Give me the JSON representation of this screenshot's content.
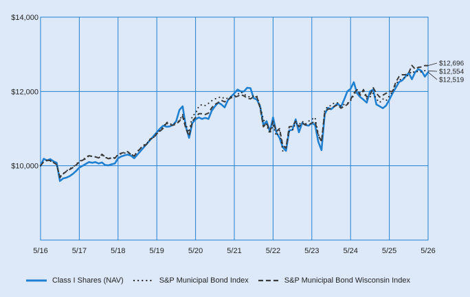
{
  "chart_data": {
    "type": "line",
    "title": "",
    "xlabel": "",
    "ylabel": "",
    "ylim": [
      8000,
      14000
    ],
    "xlim": [
      "2016-05",
      "2026-05"
    ],
    "y_ticks": [
      {
        "value": 10000,
        "label": "$10,000"
      },
      {
        "value": 12000,
        "label": "$12,000"
      },
      {
        "value": 14000,
        "label": "$14,000"
      }
    ],
    "x_ticks": [
      "5/16",
      "5/17",
      "5/18",
      "5/19",
      "5/20",
      "5/21",
      "5/22",
      "5/23",
      "5/24",
      "5/25",
      "5/26"
    ],
    "grid": true,
    "legend_position": "bottom",
    "colors": {
      "fund": "#1f7fd1",
      "muni": "#222222",
      "wisconsin": "#3a3a3a",
      "grid": "#1f7fd1",
      "background": "#dde9f8"
    },
    "series": [
      {
        "name": "Class I Shares (NAV)",
        "style": "solid",
        "end_label": "$12,519",
        "x": [
          "2016-05",
          "2016-06",
          "2016-07",
          "2016-08",
          "2016-09",
          "2016-10",
          "2016-11",
          "2016-12",
          "2017-01",
          "2017-02",
          "2017-03",
          "2017-04",
          "2017-05",
          "2017-06",
          "2017-07",
          "2017-08",
          "2017-09",
          "2017-10",
          "2017-11",
          "2017-12",
          "2018-01",
          "2018-02",
          "2018-03",
          "2018-04",
          "2018-05",
          "2018-06",
          "2018-07",
          "2018-08",
          "2018-09",
          "2018-10",
          "2018-11",
          "2018-12",
          "2019-01",
          "2019-02",
          "2019-03",
          "2019-04",
          "2019-05",
          "2019-06",
          "2019-07",
          "2019-08",
          "2019-09",
          "2019-10",
          "2019-11",
          "2019-12",
          "2020-01",
          "2020-02",
          "2020-03",
          "2020-04",
          "2020-05",
          "2020-06",
          "2020-07",
          "2020-08",
          "2020-09",
          "2020-10",
          "2020-11",
          "2020-12",
          "2021-01",
          "2021-02",
          "2021-03",
          "2021-04",
          "2021-05",
          "2021-06",
          "2021-07",
          "2021-08",
          "2021-09",
          "2021-10",
          "2021-11",
          "2021-12",
          "2022-01",
          "2022-02",
          "2022-03",
          "2022-04",
          "2022-05",
          "2022-06",
          "2022-07",
          "2022-08",
          "2022-09",
          "2022-10",
          "2022-11",
          "2022-12",
          "2023-01",
          "2023-02",
          "2023-03",
          "2023-04",
          "2023-05",
          "2023-06",
          "2023-07",
          "2023-08",
          "2023-09",
          "2023-10",
          "2023-11",
          "2023-12",
          "2024-01",
          "2024-02",
          "2024-03",
          "2024-04",
          "2024-05",
          "2024-06",
          "2024-07",
          "2024-08",
          "2024-09",
          "2024-10",
          "2024-11",
          "2024-12",
          "2025-01",
          "2025-02",
          "2025-03",
          "2025-04",
          "2025-05",
          "2025-06",
          "2025-07",
          "2025-08",
          "2025-09",
          "2025-10",
          "2025-11",
          "2025-12",
          "2026-01",
          "2026-02",
          "2026-03",
          "2026-04",
          "2026-05"
        ],
        "values": [
          10000,
          10190,
          10140,
          10180,
          10120,
          10080,
          9590,
          9660,
          9680,
          9720,
          9780,
          9860,
          9950,
          10000,
          10050,
          10100,
          10080,
          10100,
          10060,
          10090,
          10020,
          10010,
          10040,
          10060,
          10200,
          10250,
          10280,
          10300,
          10270,
          10200,
          10300,
          10400,
          10500,
          10600,
          10700,
          10800,
          10900,
          11000,
          11080,
          11050,
          11060,
          11100,
          11200,
          11500,
          11600,
          11050,
          10750,
          11150,
          11250,
          11300,
          11260,
          11290,
          11260,
          11480,
          11600,
          11700,
          11650,
          11570,
          11760,
          11860,
          11950,
          12050,
          12000,
          12000,
          12100,
          12090,
          11820,
          11780,
          11600,
          11100,
          11200,
          10920,
          11300,
          10900,
          10750,
          10500,
          10400,
          10950,
          10970,
          11250,
          10900,
          11150,
          11100,
          11080,
          11150,
          11100,
          10650,
          10420,
          11390,
          11560,
          11520,
          11600,
          11680,
          11580,
          11780,
          12000,
          12070,
          12250,
          11950,
          11850,
          11780,
          11700,
          12000,
          12050,
          11650,
          11600,
          11550,
          11620,
          11780,
          11950,
          12100,
          12250,
          12300,
          12400,
          12500,
          12330,
          12519,
          12600,
          12550,
          12400,
          12519
        ]
      },
      {
        "name": "S&P Municipal Bond Index",
        "style": "dotted",
        "end_label": "$12,554",
        "x": [
          "2016-05",
          "2016-06",
          "2016-07",
          "2016-08",
          "2016-09",
          "2016-10",
          "2016-11",
          "2016-12",
          "2017-01",
          "2017-02",
          "2017-03",
          "2017-04",
          "2017-05",
          "2017-06",
          "2017-07",
          "2017-08",
          "2017-09",
          "2017-10",
          "2017-11",
          "2017-12",
          "2018-01",
          "2018-02",
          "2018-03",
          "2018-04",
          "2018-05",
          "2018-06",
          "2018-07",
          "2018-08",
          "2018-09",
          "2018-10",
          "2018-11",
          "2018-12",
          "2019-01",
          "2019-02",
          "2019-03",
          "2019-04",
          "2019-05",
          "2019-06",
          "2019-07",
          "2019-08",
          "2019-09",
          "2019-10",
          "2019-11",
          "2019-12",
          "2020-01",
          "2020-02",
          "2020-03",
          "2020-04",
          "2020-05",
          "2020-06",
          "2020-07",
          "2020-08",
          "2020-09",
          "2020-10",
          "2020-11",
          "2020-12",
          "2021-01",
          "2021-02",
          "2021-03",
          "2021-04",
          "2021-05",
          "2021-06",
          "2021-07",
          "2021-08",
          "2021-09",
          "2021-10",
          "2021-11",
          "2021-12",
          "2022-01",
          "2022-02",
          "2022-03",
          "2022-04",
          "2022-05",
          "2022-06",
          "2022-07",
          "2022-08",
          "2022-09",
          "2022-10",
          "2022-11",
          "2022-12",
          "2023-01",
          "2023-02",
          "2023-03",
          "2023-04",
          "2023-05",
          "2023-06",
          "2023-07",
          "2023-08",
          "2023-09",
          "2023-10",
          "2023-11",
          "2023-12",
          "2024-01",
          "2024-02",
          "2024-03",
          "2024-04",
          "2024-05",
          "2024-06",
          "2024-07",
          "2024-08",
          "2024-09",
          "2024-10",
          "2024-11",
          "2024-12",
          "2025-01",
          "2025-02",
          "2025-03",
          "2025-04",
          "2025-05",
          "2025-06",
          "2025-07",
          "2025-08",
          "2025-09",
          "2025-10",
          "2025-11",
          "2025-12",
          "2026-01",
          "2026-02",
          "2026-03",
          "2026-04",
          "2026-05"
        ],
        "values": [
          10000,
          10120,
          10140,
          10130,
          10090,
          10020,
          9700,
          9790,
          9860,
          9920,
          9960,
          10040,
          10120,
          10160,
          10220,
          10280,
          10250,
          10240,
          10210,
          10290,
          10230,
          10190,
          10230,
          10210,
          10300,
          10320,
          10340,
          10360,
          10310,
          10270,
          10390,
          10480,
          10560,
          10610,
          10730,
          10760,
          10880,
          10950,
          11040,
          11180,
          11120,
          11130,
          11150,
          11220,
          11380,
          11100,
          10900,
          11350,
          11400,
          11600,
          11650,
          11620,
          11680,
          11750,
          11800,
          11830,
          11860,
          11800,
          11820,
          11860,
          11880,
          11920,
          11990,
          11930,
          11870,
          11850,
          11880,
          11870,
          11600,
          11250,
          11100,
          10860,
          11100,
          10800,
          10950,
          10400,
          10500,
          10920,
          10950,
          11150,
          11100,
          11200,
          11120,
          11200,
          11250,
          11300,
          10850,
          10650,
          11500,
          11600,
          11620,
          11700,
          11690,
          11600,
          11650,
          11680,
          11750,
          11900,
          12050,
          11950,
          12000,
          11800,
          11850,
          11950,
          11800,
          11700,
          11800,
          11750,
          11880,
          12000,
          12200,
          12300,
          12350,
          12380,
          12450,
          12550,
          12500,
          12554,
          12520,
          12560,
          12554
        ]
      },
      {
        "name": "S&P Municipal Bond Wisconsin Index",
        "style": "dashed",
        "end_label": "$12,696",
        "x": [
          "2016-05",
          "2016-06",
          "2016-07",
          "2016-08",
          "2016-09",
          "2016-10",
          "2016-11",
          "2016-12",
          "2017-01",
          "2017-02",
          "2017-03",
          "2017-04",
          "2017-05",
          "2017-06",
          "2017-07",
          "2017-08",
          "2017-09",
          "2017-10",
          "2017-11",
          "2017-12",
          "2018-01",
          "2018-02",
          "2018-03",
          "2018-04",
          "2018-05",
          "2018-06",
          "2018-07",
          "2018-08",
          "2018-09",
          "2018-10",
          "2018-11",
          "2018-12",
          "2019-01",
          "2019-02",
          "2019-03",
          "2019-04",
          "2019-05",
          "2019-06",
          "2019-07",
          "2019-08",
          "2019-09",
          "2019-10",
          "2019-11",
          "2019-12",
          "2020-01",
          "2020-02",
          "2020-03",
          "2020-04",
          "2020-05",
          "2020-06",
          "2020-07",
          "2020-08",
          "2020-09",
          "2020-10",
          "2020-11",
          "2020-12",
          "2021-01",
          "2021-02",
          "2021-03",
          "2021-04",
          "2021-05",
          "2021-06",
          "2021-07",
          "2021-08",
          "2021-09",
          "2021-10",
          "2021-11",
          "2021-12",
          "2022-01",
          "2022-02",
          "2022-03",
          "2022-04",
          "2022-05",
          "2022-06",
          "2022-07",
          "2022-08",
          "2022-09",
          "2022-10",
          "2022-11",
          "2022-12",
          "2023-01",
          "2023-02",
          "2023-03",
          "2023-04",
          "2023-05",
          "2023-06",
          "2023-07",
          "2023-08",
          "2023-09",
          "2023-10",
          "2023-11",
          "2023-12",
          "2024-01",
          "2024-02",
          "2024-03",
          "2024-04",
          "2024-05",
          "2024-06",
          "2024-07",
          "2024-08",
          "2024-09",
          "2024-10",
          "2024-11",
          "2024-12",
          "2025-01",
          "2025-02",
          "2025-03",
          "2025-04",
          "2025-05",
          "2025-06",
          "2025-07",
          "2025-08",
          "2025-09",
          "2025-10",
          "2025-11",
          "2025-12",
          "2026-01",
          "2026-02",
          "2026-03",
          "2026-04",
          "2026-05"
        ],
        "values": [
          10000,
          10110,
          10150,
          10140,
          10090,
          10030,
          9680,
          9780,
          9850,
          9900,
          9950,
          10020,
          10100,
          10150,
          10190,
          10270,
          10250,
          10240,
          10210,
          10310,
          10240,
          10190,
          10210,
          10200,
          10300,
          10340,
          10360,
          10380,
          10300,
          10260,
          10380,
          10470,
          10530,
          10590,
          10720,
          10750,
          10860,
          10930,
          11010,
          11150,
          11100,
          11090,
          11120,
          11200,
          11330,
          11000,
          10800,
          11200,
          11300,
          11400,
          11400,
          11380,
          11420,
          11560,
          11650,
          11700,
          11760,
          11720,
          11780,
          11830,
          11850,
          11870,
          11920,
          11880,
          11820,
          11800,
          11860,
          11850,
          11550,
          11050,
          11150,
          10920,
          11200,
          10920,
          11000,
          10550,
          10480,
          11050,
          11060,
          11200,
          11050,
          11150,
          11100,
          11100,
          11150,
          11200,
          10820,
          10650,
          11450,
          11520,
          11540,
          11600,
          11640,
          11550,
          11600,
          11650,
          11780,
          11950,
          12050,
          11900,
          12050,
          11850,
          11900,
          12100,
          11950,
          11850,
          11900,
          11950,
          12000,
          12000,
          12250,
          12400,
          12450,
          12450,
          12500,
          12700,
          12600,
          12650,
          12660,
          12696,
          12696
        ]
      }
    ]
  }
}
